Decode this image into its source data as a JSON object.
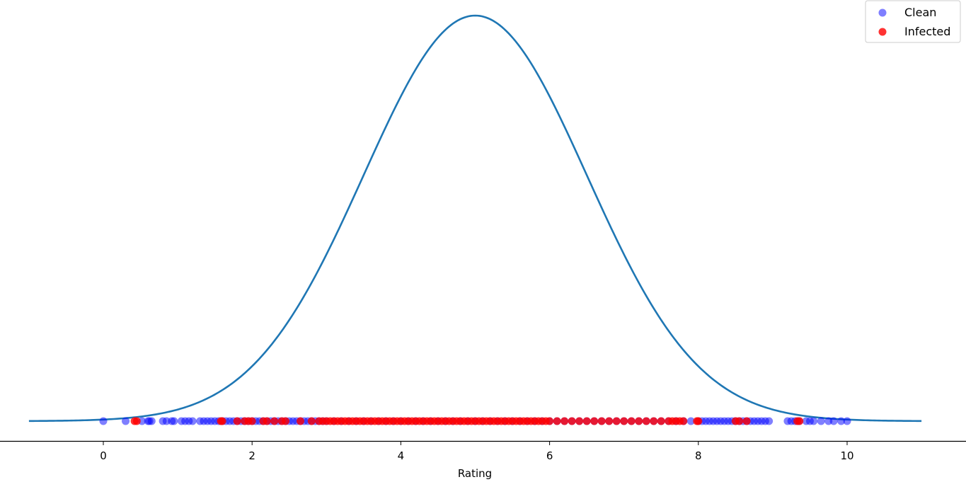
{
  "chart_data": {
    "type": "scatter",
    "title": "",
    "xlabel": "Rating",
    "ylabel": "",
    "xlim": [
      -1.1,
      11.3
    ],
    "xticks": [
      0,
      2,
      4,
      6,
      8,
      10
    ],
    "grid": false,
    "legend_position": "top-right",
    "curve": {
      "type": "line",
      "description": "normal density",
      "mean": 5,
      "std": 1.5,
      "x_range": [
        -1,
        11
      ],
      "color": "#1f77b4"
    },
    "series": [
      {
        "name": "Clean",
        "color": "#0000ff",
        "alpha": 0.5,
        "y": 0,
        "x": [
          0.0,
          0.3,
          0.52,
          0.6,
          0.62,
          0.65,
          0.8,
          0.85,
          0.92,
          0.95,
          1.05,
          1.1,
          1.15,
          1.2,
          1.3,
          1.35,
          1.4,
          1.45,
          1.5,
          1.55,
          1.6,
          1.65,
          1.7,
          1.75,
          1.8,
          1.85,
          1.9,
          1.95,
          2.0,
          2.05,
          2.1,
          2.15,
          2.2,
          2.25,
          2.3,
          2.35,
          2.4,
          2.45,
          2.5,
          2.55,
          2.6,
          2.65,
          2.7,
          2.75,
          2.8,
          2.85,
          2.9,
          2.95,
          3.0,
          3.1,
          3.2,
          3.3,
          3.4,
          3.5,
          3.6,
          3.7,
          3.8,
          3.9,
          4.0,
          4.1,
          4.2,
          4.3,
          4.4,
          4.5,
          4.6,
          4.7,
          4.8,
          4.9,
          5.0,
          5.1,
          5.2,
          5.3,
          5.4,
          5.5,
          5.6,
          5.7,
          5.8,
          5.9,
          6.0,
          6.1,
          6.2,
          6.3,
          6.4,
          6.5,
          6.6,
          6.7,
          6.8,
          6.9,
          7.0,
          7.1,
          7.2,
          7.3,
          7.4,
          7.5,
          7.6,
          7.7,
          7.8,
          7.9,
          8.0,
          8.05,
          8.1,
          8.15,
          8.2,
          8.25,
          8.3,
          8.35,
          8.4,
          8.45,
          8.5,
          8.55,
          8.6,
          8.65,
          8.7,
          8.75,
          8.8,
          8.85,
          8.9,
          8.95,
          9.2,
          9.25,
          9.3,
          9.35,
          9.45,
          9.5,
          9.55,
          9.65,
          9.75,
          9.82,
          9.92,
          10.0
        ]
      },
      {
        "name": "Infected",
        "color": "#ff0000",
        "alpha": 0.8,
        "y": 0,
        "x": [
          0.42,
          0.45,
          1.58,
          1.6,
          1.8,
          1.9,
          1.95,
          2.0,
          2.15,
          2.2,
          2.3,
          2.4,
          2.45,
          2.65,
          2.8,
          2.9,
          2.95,
          3.0,
          3.05,
          3.1,
          3.15,
          3.2,
          3.25,
          3.3,
          3.35,
          3.4,
          3.45,
          3.5,
          3.55,
          3.6,
          3.65,
          3.7,
          3.75,
          3.8,
          3.85,
          3.9,
          3.95,
          4.0,
          4.05,
          4.1,
          4.15,
          4.2,
          4.25,
          4.3,
          4.35,
          4.4,
          4.45,
          4.5,
          4.55,
          4.6,
          4.65,
          4.7,
          4.75,
          4.8,
          4.85,
          4.9,
          4.95,
          5.0,
          5.05,
          5.1,
          5.15,
          5.2,
          5.25,
          5.3,
          5.35,
          5.4,
          5.45,
          5.5,
          5.55,
          5.6,
          5.65,
          5.7,
          5.75,
          5.8,
          5.85,
          5.9,
          5.95,
          6.0,
          6.1,
          6.2,
          6.3,
          6.4,
          6.5,
          6.6,
          6.7,
          6.8,
          6.9,
          7.0,
          7.1,
          7.2,
          7.3,
          7.4,
          7.5,
          7.6,
          7.65,
          7.7,
          7.75,
          7.8,
          7.98,
          8.0,
          8.5,
          8.55,
          8.65,
          9.33,
          9.36
        ]
      }
    ],
    "legend": [
      {
        "label": "Clean",
        "color": "#0000ff",
        "alpha": 0.5
      },
      {
        "label": "Infected",
        "color": "#ff0000",
        "alpha": 0.8
      }
    ]
  }
}
